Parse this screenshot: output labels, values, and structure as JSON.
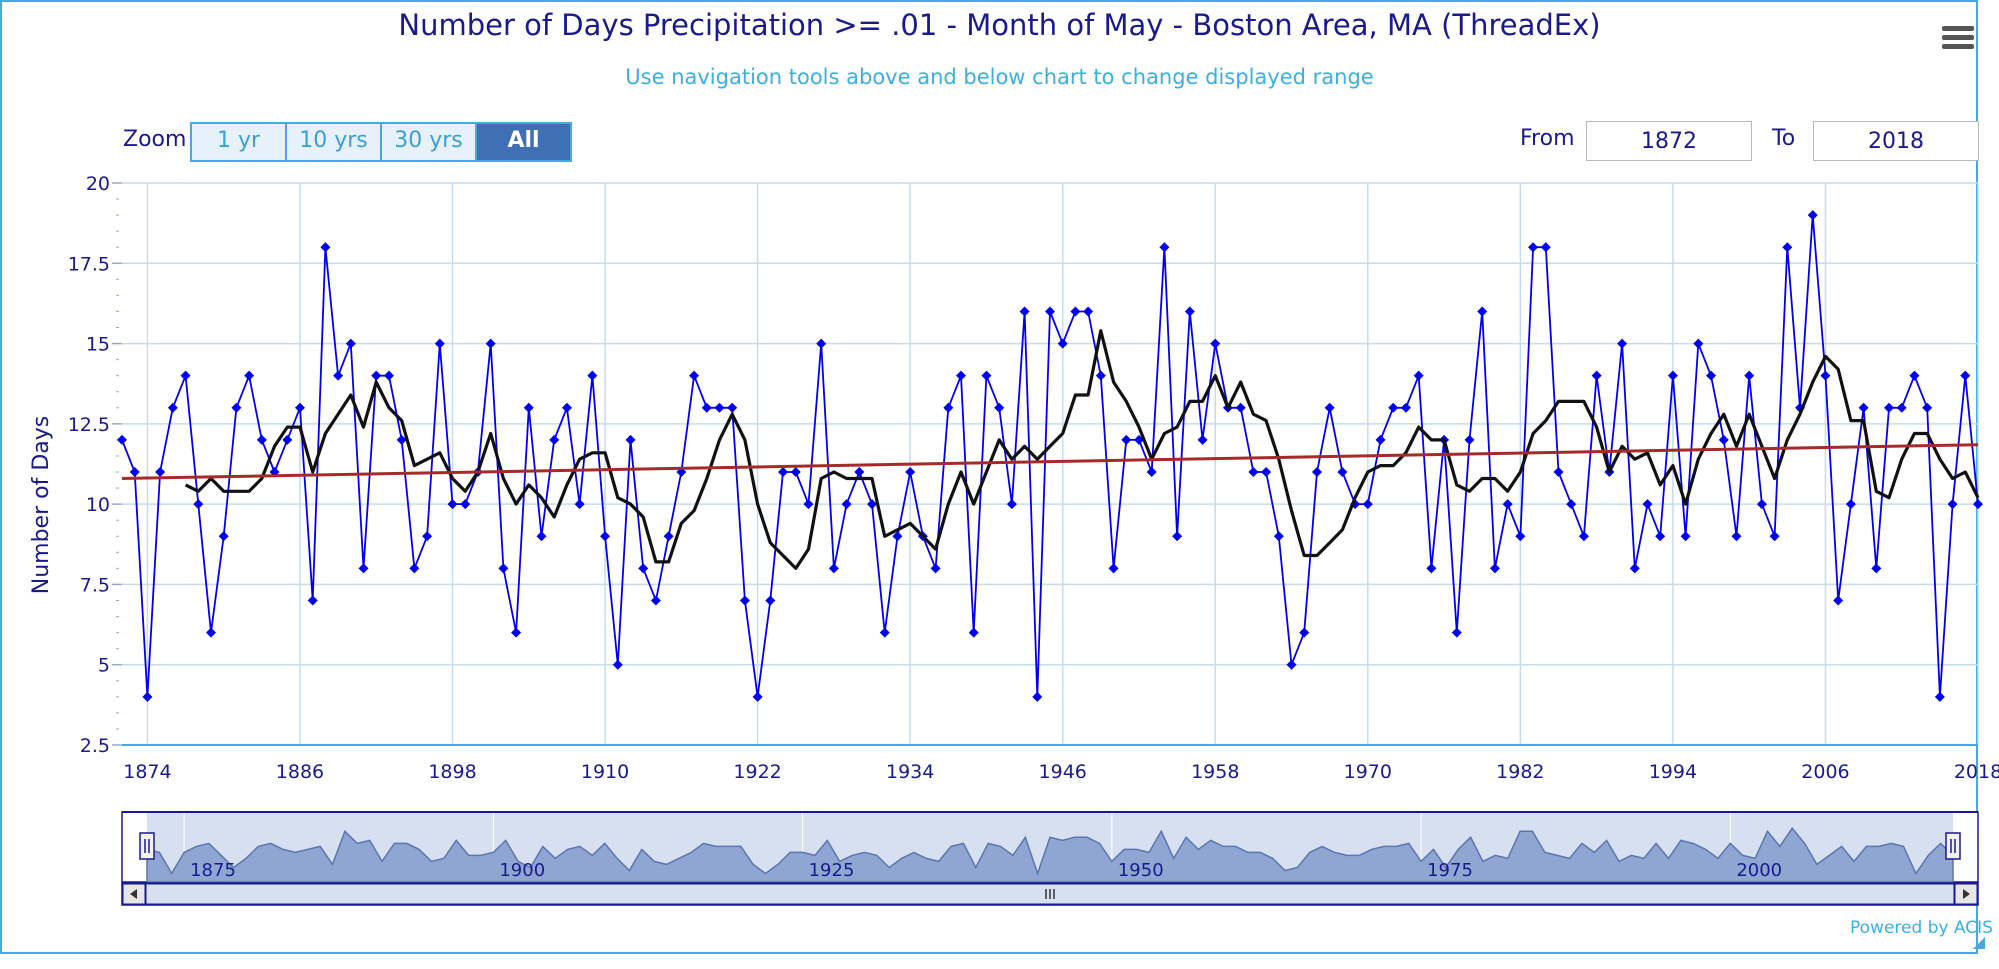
{
  "header": {
    "title": "Number of Days Precipitation >= .01 - Month of May - Boston Area, MA (ThreadEx)",
    "subtitle": "Use navigation tools above and below chart to change displayed range"
  },
  "menu": {
    "icon": "hamburger-menu-icon"
  },
  "zoom": {
    "label": "Zoom",
    "buttons": [
      {
        "label": "1 yr",
        "active": false
      },
      {
        "label": "10 yrs",
        "active": false
      },
      {
        "label": "30 yrs",
        "active": false
      },
      {
        "label": "All",
        "active": true
      }
    ]
  },
  "range": {
    "from_label": "From",
    "from_value": "1872",
    "to_label": "To",
    "to_value": "2018"
  },
  "credits": "Powered by ACIS",
  "colors": {
    "data_series": "#0000ee",
    "moving_average": "#111111",
    "trend": "#a52a2a",
    "navigator_fill": "#8fa6d3",
    "accent": "#4aa8e0",
    "title": "#1a1a8c"
  },
  "chart_data": {
    "type": "line",
    "title": "Number of Days Precipitation >= .01 - Month of May - Boston Area, MA (ThreadEx)",
    "ylabel": "Number of Days",
    "xlabel": "",
    "ylim": [
      2.5,
      20
    ],
    "xlim": [
      1872,
      2018
    ],
    "y_ticks": [
      "2.5",
      "5",
      "7.5",
      "10",
      "12.5",
      "15",
      "17.5",
      "20"
    ],
    "x_ticks": [
      "1874",
      "1886",
      "1898",
      "1910",
      "1922",
      "1934",
      "1946",
      "1958",
      "1970",
      "1982",
      "1994",
      "2006",
      "2018"
    ],
    "grid": true,
    "legend": "none",
    "series": [
      {
        "values_start_year": 1872,
        "points": [
          [
            1872,
            12
          ],
          [
            1873,
            11
          ],
          [
            1874,
            4
          ],
          [
            1875,
            11
          ],
          [
            1876,
            13
          ],
          [
            1877,
            14
          ],
          [
            1878,
            10
          ],
          [
            1879,
            6
          ],
          [
            1880,
            9
          ],
          [
            1881,
            13
          ],
          [
            1882,
            14
          ],
          [
            1883,
            12
          ],
          [
            1884,
            11
          ],
          [
            1885,
            12
          ],
          [
            1886,
            13
          ],
          [
            1887,
            7
          ],
          [
            1888,
            18
          ],
          [
            1889,
            14
          ],
          [
            1890,
            15
          ],
          [
            1891,
            8
          ],
          [
            1892,
            14
          ],
          [
            1893,
            14
          ],
          [
            1894,
            12
          ],
          [
            1895,
            8
          ],
          [
            1896,
            9
          ],
          [
            1897,
            15
          ],
          [
            1898,
            10
          ],
          [
            1899,
            10
          ],
          [
            1900,
            11
          ],
          [
            1901,
            15
          ],
          [
            1902,
            8
          ],
          [
            1903,
            6
          ],
          [
            1904,
            13
          ],
          [
            1905,
            9
          ],
          [
            1906,
            12
          ],
          [
            1907,
            13
          ],
          [
            1908,
            10
          ],
          [
            1909,
            14
          ],
          [
            1910,
            9
          ],
          [
            1911,
            5
          ],
          [
            1912,
            12
          ],
          [
            1913,
            8
          ],
          [
            1914,
            7
          ],
          [
            1915,
            9
          ],
          [
            1916,
            11
          ],
          [
            1917,
            14
          ],
          [
            1918,
            13
          ],
          [
            1919,
            13
          ],
          [
            1920,
            13
          ],
          [
            1921,
            7
          ],
          [
            1922,
            4
          ],
          [
            1923,
            7
          ],
          [
            1924,
            11
          ],
          [
            1925,
            11
          ],
          [
            1926,
            10
          ],
          [
            1927,
            15
          ],
          [
            1928,
            8
          ],
          [
            1929,
            10
          ],
          [
            1930,
            11
          ],
          [
            1931,
            10
          ],
          [
            1932,
            6
          ],
          [
            1933,
            9
          ],
          [
            1934,
            11
          ],
          [
            1935,
            9
          ],
          [
            1936,
            8
          ],
          [
            1937,
            13
          ],
          [
            1938,
            14
          ],
          [
            1939,
            6
          ],
          [
            1940,
            14
          ],
          [
            1941,
            13
          ],
          [
            1942,
            10
          ],
          [
            1943,
            16
          ],
          [
            1944,
            4
          ],
          [
            1945,
            16
          ],
          [
            1946,
            15
          ],
          [
            1947,
            16
          ],
          [
            1948,
            16
          ],
          [
            1949,
            14
          ],
          [
            1950,
            8
          ],
          [
            1951,
            12
          ],
          [
            1952,
            12
          ],
          [
            1953,
            11
          ],
          [
            1954,
            18
          ],
          [
            1955,
            9
          ],
          [
            1956,
            16
          ],
          [
            1957,
            12
          ],
          [
            1958,
            15
          ],
          [
            1959,
            13
          ],
          [
            1960,
            13
          ],
          [
            1961,
            11
          ],
          [
            1962,
            11
          ],
          [
            1963,
            9
          ],
          [
            1964,
            5
          ],
          [
            1965,
            6
          ],
          [
            1966,
            11
          ],
          [
            1967,
            13
          ],
          [
            1968,
            11
          ],
          [
            1969,
            10
          ],
          [
            1970,
            10
          ],
          [
            1971,
            12
          ],
          [
            1972,
            13
          ],
          [
            1973,
            13
          ],
          [
            1974,
            14
          ],
          [
            1975,
            8
          ],
          [
            1976,
            12
          ],
          [
            1977,
            6
          ],
          [
            1978,
            12
          ],
          [
            1979,
            16
          ],
          [
            1980,
            8
          ],
          [
            1981,
            10
          ],
          [
            1982,
            9
          ],
          [
            1983,
            18
          ],
          [
            1984,
            18
          ],
          [
            1985,
            11
          ],
          [
            1986,
            10
          ],
          [
            1987,
            9
          ],
          [
            1988,
            14
          ],
          [
            1989,
            11
          ],
          [
            1990,
            15
          ],
          [
            1991,
            8
          ],
          [
            1992,
            10
          ],
          [
            1993,
            9
          ],
          [
            1994,
            14
          ],
          [
            1995,
            9
          ],
          [
            1996,
            15
          ],
          [
            1997,
            14
          ],
          [
            1998,
            12
          ],
          [
            1999,
            9
          ],
          [
            2000,
            14
          ],
          [
            2001,
            10
          ],
          [
            2002,
            9
          ],
          [
            2003,
            18
          ],
          [
            2004,
            13
          ],
          [
            2005,
            19
          ],
          [
            2006,
            14
          ],
          [
            2007,
            7
          ],
          [
            2008,
            10
          ],
          [
            2009,
            13
          ],
          [
            2010,
            8
          ],
          [
            2011,
            13
          ],
          [
            2012,
            13
          ],
          [
            2013,
            14
          ],
          [
            2014,
            13
          ],
          [
            2015,
            4
          ],
          [
            2016,
            10
          ],
          [
            2017,
            14
          ],
          [
            2018,
            10
          ]
        ]
      },
      {
        "points": [
          [
            1877,
            10.6
          ],
          [
            1878,
            10.4
          ],
          [
            1879,
            10.8
          ],
          [
            1880,
            10.4
          ],
          [
            1881,
            10.4
          ],
          [
            1882,
            10.4
          ],
          [
            1883,
            10.8
          ],
          [
            1884,
            11.8
          ],
          [
            1885,
            12.4
          ],
          [
            1886,
            12.4
          ],
          [
            1887,
            11
          ],
          [
            1888,
            12.2
          ],
          [
            1889,
            12.8
          ],
          [
            1890,
            13.4
          ],
          [
            1891,
            12.4
          ],
          [
            1892,
            13.8
          ],
          [
            1893,
            13
          ],
          [
            1894,
            12.6
          ],
          [
            1895,
            11.2
          ],
          [
            1896,
            11.4
          ],
          [
            1897,
            11.6
          ],
          [
            1898,
            10.8
          ],
          [
            1899,
            10.4
          ],
          [
            1900,
            11
          ],
          [
            1901,
            12.2
          ],
          [
            1902,
            10.8
          ],
          [
            1903,
            10
          ],
          [
            1904,
            10.6
          ],
          [
            1905,
            10.2
          ],
          [
            1906,
            9.6
          ],
          [
            1907,
            10.6
          ],
          [
            1908,
            11.4
          ],
          [
            1909,
            11.6
          ],
          [
            1910,
            11.6
          ],
          [
            1911,
            10.2
          ],
          [
            1912,
            10
          ],
          [
            1913,
            9.6
          ],
          [
            1914,
            8.2
          ],
          [
            1915,
            8.2
          ],
          [
            1916,
            9.4
          ],
          [
            1917,
            9.8
          ],
          [
            1918,
            10.8
          ],
          [
            1919,
            12
          ],
          [
            1920,
            12.8
          ],
          [
            1921,
            12
          ],
          [
            1922,
            10
          ],
          [
            1923,
            8.8
          ],
          [
            1924,
            8.4
          ],
          [
            1925,
            8
          ],
          [
            1926,
            8.6
          ],
          [
            1927,
            10.8
          ],
          [
            1928,
            11
          ],
          [
            1929,
            10.8
          ],
          [
            1930,
            10.8
          ],
          [
            1931,
            10.8
          ],
          [
            1932,
            9
          ],
          [
            1933,
            9.2
          ],
          [
            1934,
            9.4
          ],
          [
            1935,
            9
          ],
          [
            1936,
            8.6
          ],
          [
            1937,
            10
          ],
          [
            1938,
            11
          ],
          [
            1939,
            10
          ],
          [
            1940,
            11
          ],
          [
            1941,
            12
          ],
          [
            1942,
            11.4
          ],
          [
            1943,
            11.8
          ],
          [
            1944,
            11.4
          ],
          [
            1945,
            11.8
          ],
          [
            1946,
            12.2
          ],
          [
            1947,
            13.4
          ],
          [
            1948,
            13.4
          ],
          [
            1949,
            15.4
          ],
          [
            1950,
            13.8
          ],
          [
            1951,
            13.2
          ],
          [
            1952,
            12.4
          ],
          [
            1953,
            11.4
          ],
          [
            1954,
            12.2
          ],
          [
            1955,
            12.4
          ],
          [
            1956,
            13.2
          ],
          [
            1957,
            13.2
          ],
          [
            1958,
            14
          ],
          [
            1959,
            13
          ],
          [
            1960,
            13.8
          ],
          [
            1961,
            12.8
          ],
          [
            1962,
            12.6
          ],
          [
            1963,
            11.4
          ],
          [
            1964,
            9.8
          ],
          [
            1965,
            8.4
          ],
          [
            1966,
            8.4
          ],
          [
            1967,
            8.8
          ],
          [
            1968,
            9.2
          ],
          [
            1969,
            10.2
          ],
          [
            1970,
            11
          ],
          [
            1971,
            11.2
          ],
          [
            1972,
            11.2
          ],
          [
            1973,
            11.6
          ],
          [
            1974,
            12.4
          ],
          [
            1975,
            12
          ],
          [
            1976,
            12
          ],
          [
            1977,
            10.6
          ],
          [
            1978,
            10.4
          ],
          [
            1979,
            10.8
          ],
          [
            1980,
            10.8
          ],
          [
            1981,
            10.4
          ],
          [
            1982,
            11
          ],
          [
            1983,
            12.2
          ],
          [
            1984,
            12.6
          ],
          [
            1985,
            13.2
          ],
          [
            1986,
            13.2
          ],
          [
            1987,
            13.2
          ],
          [
            1988,
            12.4
          ],
          [
            1989,
            11
          ],
          [
            1990,
            11.8
          ],
          [
            1991,
            11.4
          ],
          [
            1992,
            11.6
          ],
          [
            1993,
            10.6
          ],
          [
            1994,
            11.2
          ],
          [
            1995,
            10
          ],
          [
            1996,
            11.4
          ],
          [
            1997,
            12.2
          ],
          [
            1998,
            12.8
          ],
          [
            1999,
            11.8
          ],
          [
            2000,
            12.8
          ],
          [
            2001,
            11.8
          ],
          [
            2002,
            10.8
          ],
          [
            2003,
            12
          ],
          [
            2004,
            12.8
          ],
          [
            2005,
            13.8
          ],
          [
            2006,
            14.6
          ],
          [
            2007,
            14.2
          ],
          [
            2008,
            12.6
          ],
          [
            2009,
            12.6
          ],
          [
            2010,
            10.4
          ],
          [
            2011,
            10.2
          ],
          [
            2012,
            11.4
          ],
          [
            2013,
            12.2
          ],
          [
            2014,
            12.2
          ],
          [
            2015,
            11.4
          ],
          [
            2016,
            10.8
          ],
          [
            2017,
            11
          ],
          [
            2018,
            10.2
          ]
        ]
      },
      {
        "points": [
          [
            1872,
            10.8
          ],
          [
            2018,
            11.85
          ]
        ]
      }
    ],
    "navigator": {
      "labels": [
        "1875",
        "1900",
        "1925",
        "1950",
        "1975",
        "2000"
      ]
    }
  }
}
